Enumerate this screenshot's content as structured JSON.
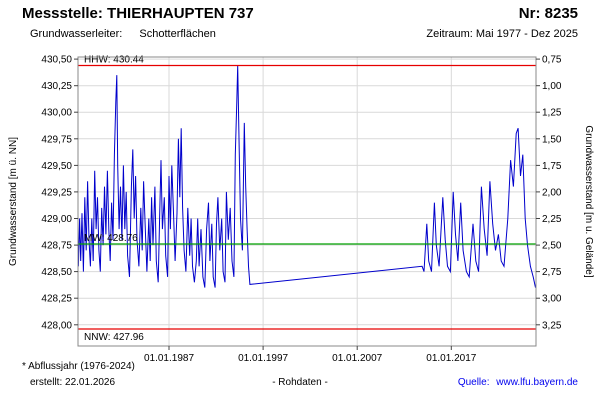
{
  "header": {
    "station_label": "Messstelle: THIERHAUPTEN 737",
    "number_label": "Nr: 8235",
    "aquifer_label": "Grundwasserleiter:",
    "aquifer_value": "Schotterflächen",
    "period_label": "Zeitraum: Mai 1977 - Dez 2025"
  },
  "footer": {
    "note": "* Abflussjahr (1976-2024)",
    "created": "erstellt: 22.01.2026",
    "center": "- Rohdaten -",
    "source_label": "Quelle:",
    "source_link": "www.lfu.bayern.de"
  },
  "chart_data": {
    "type": "line",
    "ylabel_left": "Grundwasserstand [m ü. NN]",
    "ylabel_right": "Grundwasserstand [m u. Gelände]",
    "xlim": [
      1977.33,
      2026.0
    ],
    "ylim": [
      427.8,
      430.52
    ],
    "ground_level": 431.25,
    "grid": "on",
    "colors": {
      "series": "#0000cc",
      "grid": "#d9d9d9",
      "frame": "#888888",
      "tick": "#444444",
      "text": "#000000"
    },
    "yticks_left": [
      {
        "v": 430.5,
        "label": "430,50"
      },
      {
        "v": 430.25,
        "label": "430,25"
      },
      {
        "v": 430.0,
        "label": "430,00"
      },
      {
        "v": 429.75,
        "label": "429,75"
      },
      {
        "v": 429.5,
        "label": "429,50"
      },
      {
        "v": 429.25,
        "label": "429,25"
      },
      {
        "v": 429.0,
        "label": "429,00"
      },
      {
        "v": 428.75,
        "label": "428,75"
      },
      {
        "v": 428.5,
        "label": "428,50"
      },
      {
        "v": 428.25,
        "label": "428,25"
      },
      {
        "v": 428.0,
        "label": "428,00"
      }
    ],
    "yticks_right": [
      {
        "v": 0.75,
        "label": "0,75"
      },
      {
        "v": 1.0,
        "label": "1,00"
      },
      {
        "v": 1.25,
        "label": "1,25"
      },
      {
        "v": 1.5,
        "label": "1,50"
      },
      {
        "v": 1.75,
        "label": "1,75"
      },
      {
        "v": 2.0,
        "label": "2,00"
      },
      {
        "v": 2.25,
        "label": "2,25"
      },
      {
        "v": 2.5,
        "label": "2,50"
      },
      {
        "v": 2.75,
        "label": "2,75"
      },
      {
        "v": 3.0,
        "label": "3,00"
      },
      {
        "v": 3.25,
        "label": "3,25"
      }
    ],
    "xticks": [
      {
        "year": 1987,
        "label": "01.01.1987"
      },
      {
        "year": 1997,
        "label": "01.01.1997"
      },
      {
        "year": 2007,
        "label": "01.01.2007"
      },
      {
        "year": 2017,
        "label": "01.01.2017"
      }
    ],
    "reference_lines": [
      {
        "name": "HHW",
        "value": 430.44,
        "label": "HHW: 430.44",
        "color": "#e60000",
        "label_position": "above"
      },
      {
        "name": "MW",
        "value": 428.76,
        "label": "MW: 428.76",
        "color": "#00a000",
        "label_position": "above"
      },
      {
        "name": "NNW",
        "value": 427.96,
        "label": "NNW: 427.96",
        "color": "#e60000",
        "label_position": "below"
      }
    ],
    "series": [
      {
        "name": "Grundwasserstand Rohdaten",
        "color": "#0000cc",
        "points": [
          [
            1977.37,
            428.55
          ],
          [
            1977.5,
            429.0
          ],
          [
            1977.62,
            428.6
          ],
          [
            1977.75,
            429.05
          ],
          [
            1977.9,
            428.5
          ],
          [
            1978.05,
            429.2
          ],
          [
            1978.2,
            428.7
          ],
          [
            1978.35,
            429.35
          ],
          [
            1978.5,
            428.8
          ],
          [
            1978.65,
            428.55
          ],
          [
            1978.8,
            429.0
          ],
          [
            1978.95,
            428.6
          ],
          [
            1979.1,
            429.45
          ],
          [
            1979.25,
            428.9
          ],
          [
            1979.4,
            429.2
          ],
          [
            1979.55,
            428.7
          ],
          [
            1979.7,
            428.5
          ],
          [
            1979.85,
            429.1
          ],
          [
            1980.0,
            428.75
          ],
          [
            1980.15,
            429.3
          ],
          [
            1980.3,
            428.85
          ],
          [
            1980.45,
            429.45
          ],
          [
            1980.6,
            428.9
          ],
          [
            1980.75,
            428.6
          ],
          [
            1980.9,
            429.15
          ],
          [
            1981.05,
            428.8
          ],
          [
            1981.2,
            429.6
          ],
          [
            1981.35,
            430.1
          ],
          [
            1981.45,
            430.35
          ],
          [
            1981.55,
            429.5
          ],
          [
            1981.7,
            428.9
          ],
          [
            1981.85,
            429.3
          ],
          [
            1982.0,
            428.8
          ],
          [
            1982.15,
            429.5
          ],
          [
            1982.3,
            428.9
          ],
          [
            1982.45,
            429.25
          ],
          [
            1982.6,
            428.65
          ],
          [
            1982.8,
            428.45
          ],
          [
            1983.0,
            429.3
          ],
          [
            1983.15,
            429.65
          ],
          [
            1983.3,
            429.0
          ],
          [
            1983.45,
            429.4
          ],
          [
            1983.6,
            428.8
          ],
          [
            1983.8,
            428.55
          ],
          [
            1984.0,
            429.1
          ],
          [
            1984.15,
            428.7
          ],
          [
            1984.3,
            429.35
          ],
          [
            1984.5,
            428.85
          ],
          [
            1984.65,
            428.5
          ],
          [
            1984.85,
            429.0
          ],
          [
            1985.0,
            428.6
          ],
          [
            1985.15,
            429.2
          ],
          [
            1985.3,
            428.75
          ],
          [
            1985.5,
            429.3
          ],
          [
            1985.65,
            428.6
          ],
          [
            1985.85,
            428.4
          ],
          [
            1986.0,
            429.0
          ],
          [
            1986.15,
            429.55
          ],
          [
            1986.3,
            428.9
          ],
          [
            1986.5,
            429.2
          ],
          [
            1986.65,
            428.65
          ],
          [
            1986.85,
            428.45
          ],
          [
            1987.0,
            429.4
          ],
          [
            1987.15,
            428.9
          ],
          [
            1987.3,
            429.5
          ],
          [
            1987.5,
            429.0
          ],
          [
            1987.65,
            428.6
          ],
          [
            1987.85,
            429.05
          ],
          [
            1988.0,
            429.75
          ],
          [
            1988.15,
            429.2
          ],
          [
            1988.3,
            429.85
          ],
          [
            1988.45,
            429.1
          ],
          [
            1988.6,
            428.7
          ],
          [
            1988.8,
            428.5
          ],
          [
            1989.0,
            429.1
          ],
          [
            1989.2,
            428.65
          ],
          [
            1989.35,
            429.0
          ],
          [
            1989.5,
            428.55
          ],
          [
            1989.7,
            428.4
          ],
          [
            1989.9,
            428.6
          ],
          [
            1990.05,
            429.0
          ],
          [
            1990.2,
            428.55
          ],
          [
            1990.4,
            428.9
          ],
          [
            1990.6,
            428.45
          ],
          [
            1990.8,
            428.35
          ],
          [
            1991.0,
            428.9
          ],
          [
            1991.2,
            429.15
          ],
          [
            1991.35,
            428.6
          ],
          [
            1991.55,
            428.95
          ],
          [
            1991.7,
            428.45
          ],
          [
            1991.9,
            428.35
          ],
          [
            1992.05,
            428.95
          ],
          [
            1992.2,
            429.2
          ],
          [
            1992.4,
            428.7
          ],
          [
            1992.6,
            429.0
          ],
          [
            1992.75,
            428.5
          ],
          [
            1992.95,
            428.4
          ],
          [
            1993.1,
            429.25
          ],
          [
            1993.3,
            428.8
          ],
          [
            1993.5,
            429.1
          ],
          [
            1993.7,
            428.6
          ],
          [
            1993.9,
            428.45
          ],
          [
            1994.05,
            429.6
          ],
          [
            1994.2,
            430.1
          ],
          [
            1994.3,
            430.44
          ],
          [
            1994.45,
            429.7
          ],
          [
            1994.6,
            429.0
          ],
          [
            1994.8,
            428.7
          ],
          [
            1995.0,
            429.9
          ],
          [
            1995.15,
            429.3
          ],
          [
            1995.3,
            428.9
          ],
          [
            1995.45,
            428.55
          ],
          [
            1995.6,
            428.38
          ],
          [
            2013.9,
            428.55
          ],
          [
            2014.1,
            428.5
          ],
          [
            2014.4,
            428.95
          ],
          [
            2014.6,
            428.6
          ],
          [
            2014.9,
            428.5
          ],
          [
            2015.2,
            429.15
          ],
          [
            2015.4,
            428.75
          ],
          [
            2015.7,
            428.55
          ],
          [
            2016.1,
            429.2
          ],
          [
            2016.35,
            428.8
          ],
          [
            2016.6,
            428.55
          ],
          [
            2016.9,
            428.5
          ],
          [
            2017.2,
            429.25
          ],
          [
            2017.45,
            428.85
          ],
          [
            2017.7,
            428.6
          ],
          [
            2018.0,
            429.15
          ],
          [
            2018.25,
            428.7
          ],
          [
            2018.6,
            428.5
          ],
          [
            2018.9,
            428.45
          ],
          [
            2019.3,
            428.95
          ],
          [
            2019.6,
            428.6
          ],
          [
            2019.9,
            428.5
          ],
          [
            2020.2,
            429.3
          ],
          [
            2020.5,
            428.9
          ],
          [
            2020.8,
            428.65
          ],
          [
            2021.1,
            429.35
          ],
          [
            2021.4,
            428.95
          ],
          [
            2021.7,
            428.7
          ],
          [
            2022.0,
            428.85
          ],
          [
            2022.3,
            428.6
          ],
          [
            2022.6,
            428.55
          ],
          [
            2023.0,
            429.0
          ],
          [
            2023.3,
            429.55
          ],
          [
            2023.6,
            429.3
          ],
          [
            2023.9,
            429.8
          ],
          [
            2024.1,
            429.85
          ],
          [
            2024.35,
            429.4
          ],
          [
            2024.6,
            429.6
          ],
          [
            2024.85,
            429.0
          ],
          [
            2025.1,
            428.75
          ],
          [
            2025.4,
            428.55
          ],
          [
            2025.7,
            428.45
          ],
          [
            2025.95,
            428.35
          ]
        ]
      }
    ]
  }
}
